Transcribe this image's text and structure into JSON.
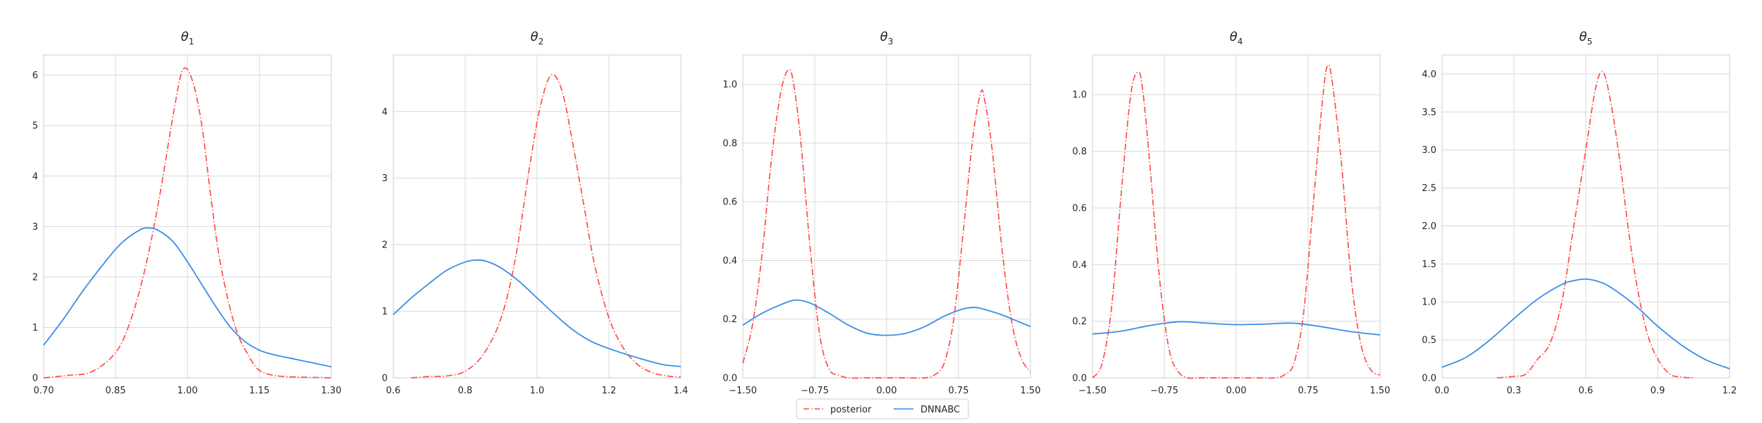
{
  "legend": {
    "placement": "bottom-center",
    "entries": [
      {
        "label": "posterior",
        "color": "#ff4d4d",
        "style": "dashdot"
      },
      {
        "label": "DNNABC",
        "color": "#3a8ee6",
        "style": "solid"
      }
    ]
  },
  "style": {
    "grid": true,
    "grid_color": "#d9d9d9",
    "axis_color": "#cccccc",
    "posterior_color": "#ff4d4d",
    "dnnabc_color": "#3a8ee6"
  },
  "chart_data": [
    {
      "type": "line",
      "title_base": "θ",
      "title_sub": "1",
      "xlim": [
        0.7,
        1.3
      ],
      "ylim": [
        0,
        6.4
      ],
      "xticks": [
        0.7,
        0.85,
        1.0,
        1.15,
        1.3
      ],
      "xtick_labels": [
        "0.70",
        "0.85",
        "1.00",
        "1.15",
        "1.30"
      ],
      "yticks": [
        0,
        1,
        2,
        3,
        4,
        5,
        6
      ],
      "ytick_labels": [
        "0",
        "1",
        "2",
        "3",
        "4",
        "5",
        "6"
      ],
      "series": [
        {
          "name": "posterior",
          "x": [
            0.7,
            0.75,
            0.8,
            0.85,
            0.88,
            0.91,
            0.94,
            0.97,
            0.99,
            1.01,
            1.03,
            1.05,
            1.07,
            1.1,
            1.13,
            1.15,
            1.18,
            1.22,
            1.26,
            1.3
          ],
          "y": [
            0.0,
            0.05,
            0.12,
            0.5,
            1.1,
            2.1,
            3.5,
            5.2,
            6.1,
            5.9,
            5.0,
            3.5,
            2.2,
            1.0,
            0.4,
            0.15,
            0.05,
            0.02,
            0.01,
            0.0
          ]
        },
        {
          "name": "DNNABC",
          "x": [
            0.7,
            0.74,
            0.78,
            0.82,
            0.86,
            0.9,
            0.92,
            0.94,
            0.97,
            1.0,
            1.03,
            1.06,
            1.09,
            1.12,
            1.15,
            1.18,
            1.22,
            1.26,
            1.3
          ],
          "y": [
            0.65,
            1.15,
            1.7,
            2.2,
            2.65,
            2.93,
            2.97,
            2.92,
            2.7,
            2.3,
            1.85,
            1.4,
            1.0,
            0.72,
            0.55,
            0.46,
            0.38,
            0.3,
            0.22
          ]
        }
      ]
    },
    {
      "type": "line",
      "title_base": "θ",
      "title_sub": "2",
      "xlim": [
        0.6,
        1.4
      ],
      "ylim": [
        0,
        4.85
      ],
      "xticks": [
        0.6,
        0.8,
        1.0,
        1.2,
        1.4
      ],
      "xtick_labels": [
        "0.6",
        "0.8",
        "1.0",
        "1.2",
        "1.4"
      ],
      "yticks": [
        0,
        1,
        2,
        3,
        4
      ],
      "ytick_labels": [
        "0",
        "1",
        "2",
        "3",
        "4"
      ],
      "series": [
        {
          "name": "posterior",
          "x": [
            0.65,
            0.7,
            0.75,
            0.8,
            0.85,
            0.9,
            0.94,
            0.98,
            1.01,
            1.04,
            1.07,
            1.1,
            1.13,
            1.16,
            1.2,
            1.24,
            1.28,
            1.32,
            1.36,
            1.4
          ],
          "y": [
            0.0,
            0.02,
            0.03,
            0.1,
            0.35,
            0.9,
            1.8,
            3.2,
            4.1,
            4.55,
            4.3,
            3.5,
            2.6,
            1.7,
            0.9,
            0.45,
            0.2,
            0.08,
            0.03,
            0.01
          ]
        },
        {
          "name": "DNNABC",
          "x": [
            0.6,
            0.65,
            0.7,
            0.75,
            0.8,
            0.83,
            0.86,
            0.9,
            0.95,
            1.0,
            1.05,
            1.1,
            1.15,
            1.2,
            1.25,
            1.3,
            1.35,
            1.4
          ],
          "y": [
            0.95,
            1.2,
            1.42,
            1.62,
            1.74,
            1.77,
            1.75,
            1.65,
            1.45,
            1.2,
            0.95,
            0.72,
            0.55,
            0.44,
            0.35,
            0.27,
            0.2,
            0.17
          ]
        }
      ]
    },
    {
      "type": "line",
      "title_base": "θ",
      "title_sub": "3",
      "xlim": [
        -1.5,
        1.5
      ],
      "ylim": [
        0,
        1.1
      ],
      "xticks": [
        -1.5,
        -0.75,
        0.0,
        0.75,
        1.5
      ],
      "xtick_labels": [
        "−1.50",
        "−0.75",
        "0.00",
        "0.75",
        "1.50"
      ],
      "yticks": [
        0,
        0.2,
        0.4,
        0.6,
        0.8,
        1.0
      ],
      "ytick_labels": [
        "0.0",
        "0.2",
        "0.4",
        "0.6",
        "0.8",
        "1.0"
      ],
      "series": [
        {
          "name": "posterior",
          "x": [
            -1.5,
            -1.4,
            -1.3,
            -1.2,
            -1.1,
            -1.02,
            -0.97,
            -0.9,
            -0.8,
            -0.7,
            -0.6,
            -0.5,
            -0.4,
            -0.2,
            0.0,
            0.2,
            0.4,
            0.5,
            0.6,
            0.7,
            0.8,
            0.9,
            0.98,
            1.02,
            1.1,
            1.2,
            1.3,
            1.4,
            1.5
          ],
          "y": [
            0.05,
            0.18,
            0.42,
            0.75,
            0.98,
            1.05,
            1.0,
            0.82,
            0.45,
            0.15,
            0.03,
            0.01,
            0.0,
            0.0,
            0.0,
            0.0,
            0.0,
            0.01,
            0.05,
            0.2,
            0.5,
            0.82,
            0.97,
            0.95,
            0.78,
            0.45,
            0.2,
            0.07,
            0.02
          ]
        },
        {
          "name": "DNNABC",
          "x": [
            -1.5,
            -1.3,
            -1.1,
            -0.95,
            -0.8,
            -0.6,
            -0.4,
            -0.2,
            0.0,
            0.2,
            0.4,
            0.6,
            0.8,
            0.92,
            1.0,
            1.2,
            1.35,
            1.5
          ],
          "y": [
            0.18,
            0.22,
            0.25,
            0.265,
            0.255,
            0.22,
            0.18,
            0.152,
            0.145,
            0.152,
            0.175,
            0.21,
            0.235,
            0.24,
            0.235,
            0.215,
            0.195,
            0.175
          ]
        }
      ]
    },
    {
      "type": "line",
      "title_base": "θ",
      "title_sub": "4",
      "xlim": [
        -1.5,
        1.5
      ],
      "ylim": [
        0,
        1.14
      ],
      "xticks": [
        -1.5,
        -0.75,
        0.0,
        0.75,
        1.5
      ],
      "xtick_labels": [
        "−1.50",
        "−0.75",
        "0.00",
        "0.75",
        "1.50"
      ],
      "yticks": [
        0,
        0.2,
        0.4,
        0.6,
        0.8,
        1.0
      ],
      "ytick_labels": [
        "0.0",
        "0.2",
        "0.4",
        "0.6",
        "0.8",
        "1.0"
      ],
      "series": [
        {
          "name": "posterior",
          "x": [
            -1.5,
            -1.4,
            -1.3,
            -1.2,
            -1.1,
            -1.02,
            -0.97,
            -0.9,
            -0.8,
            -0.7,
            -0.6,
            -0.5,
            -0.4,
            -0.2,
            0.0,
            0.2,
            0.4,
            0.5,
            0.6,
            0.7,
            0.8,
            0.9,
            0.95,
            1.0,
            1.1,
            1.2,
            1.3,
            1.4,
            1.5
          ],
          "y": [
            0.0,
            0.05,
            0.25,
            0.65,
            1.0,
            1.08,
            1.0,
            0.75,
            0.35,
            0.1,
            0.02,
            0.0,
            0.0,
            0.0,
            0.0,
            0.0,
            0.0,
            0.01,
            0.05,
            0.22,
            0.6,
            0.98,
            1.1,
            1.05,
            0.75,
            0.35,
            0.12,
            0.03,
            0.01
          ]
        },
        {
          "name": "DNNABC",
          "x": [
            -1.5,
            -1.2,
            -0.9,
            -0.6,
            -0.3,
            0.0,
            0.3,
            0.6,
            0.9,
            1.2,
            1.5
          ],
          "y": [
            0.155,
            0.165,
            0.185,
            0.198,
            0.193,
            0.188,
            0.19,
            0.193,
            0.18,
            0.163,
            0.152
          ]
        }
      ]
    },
    {
      "type": "line",
      "title_base": "θ",
      "title_sub": "5",
      "xlim": [
        0.0,
        1.2
      ],
      "ylim": [
        0,
        4.25
      ],
      "xticks": [
        0.0,
        0.3,
        0.6,
        0.9,
        1.2
      ],
      "xtick_labels": [
        "0.0",
        "0.3",
        "0.6",
        "0.9",
        "1.2"
      ],
      "yticks": [
        0,
        0.5,
        1.0,
        1.5,
        2.0,
        2.5,
        3.0,
        3.5,
        4.0
      ],
      "ytick_labels": [
        "0.0",
        "0.5",
        "1.0",
        "1.5",
        "2.0",
        "2.5",
        "3.0",
        "3.5",
        "4.0"
      ],
      "series": [
        {
          "name": "posterior",
          "x": [
            0.23,
            0.3,
            0.35,
            0.4,
            0.45,
            0.5,
            0.55,
            0.6,
            0.64,
            0.67,
            0.7,
            0.74,
            0.78,
            0.82,
            0.86,
            0.9,
            0.95,
            1.0,
            1.05
          ],
          "y": [
            0.0,
            0.02,
            0.05,
            0.25,
            0.45,
            1.0,
            2.0,
            3.0,
            3.8,
            4.03,
            3.7,
            2.9,
            1.9,
            1.1,
            0.55,
            0.25,
            0.05,
            0.01,
            0.0
          ]
        },
        {
          "name": "DNNABC",
          "x": [
            0.0,
            0.1,
            0.2,
            0.3,
            0.4,
            0.5,
            0.55,
            0.6,
            0.65,
            0.7,
            0.8,
            0.9,
            1.0,
            1.1,
            1.2
          ],
          "y": [
            0.14,
            0.27,
            0.5,
            0.78,
            1.04,
            1.23,
            1.28,
            1.3,
            1.27,
            1.2,
            0.97,
            0.68,
            0.43,
            0.24,
            0.12
          ]
        }
      ]
    }
  ]
}
